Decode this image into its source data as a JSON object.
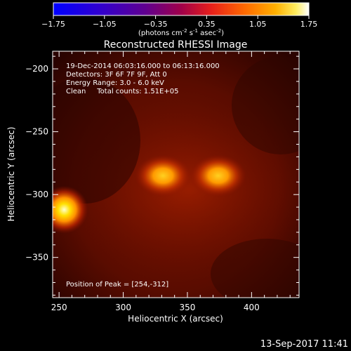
{
  "chart_data": {
    "type": "heatmap",
    "title": "Reconstructed RHESSI Image",
    "xlabel": "Heliocentric X (arcsec)",
    "ylabel": "Heliocentric Y (arcsec)",
    "xlim": [
      245,
      437
    ],
    "ylim": [
      -382,
      -186
    ],
    "x_ticks": [
      250,
      300,
      350,
      400
    ],
    "y_ticks": [
      -200,
      -250,
      -300,
      -350
    ],
    "colorbar": {
      "min": -1.75,
      "max": 1.75,
      "ticks": [
        "-1.75",
        "-1.05",
        "-0.35",
        "0.35",
        "1.05",
        "1.75"
      ],
      "unit_prefix": "(photons cm",
      "unit_exp1": "-2",
      "unit_mid": " s",
      "unit_exp2": "-1",
      "unit_mid2": " asec",
      "unit_exp3": "-2",
      "unit_suffix": ")"
    },
    "annotations": [
      "19-Dec-2014 06:03:16.000 to 06:13:16.000",
      "Detectors: 3F 6F 7F 9F, Att 0",
      "Energy Range: 3.0 - 6.0 keV",
      "Clean     Total counts: 1.51E+05"
    ],
    "peak_label": "Position of Peak = [254,-312]",
    "sources": [
      {
        "x": 254,
        "y": -312,
        "value": 1.75
      },
      {
        "x": 331,
        "y": -285,
        "value": 1.2
      },
      {
        "x": 374,
        "y": -285,
        "value": 1.25
      }
    ],
    "timestamp": "13-Sep-2017 11:41"
  }
}
